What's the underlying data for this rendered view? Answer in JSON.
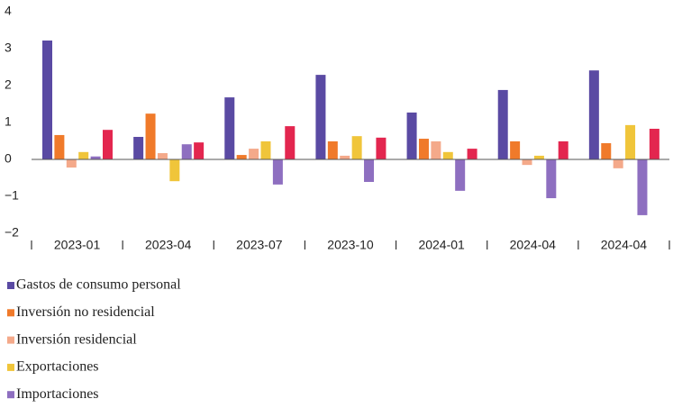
{
  "chart_data": {
    "type": "bar",
    "categories": [
      "2023-01",
      "2023-04",
      "2023-07",
      "2023-10",
      "2024-01",
      "2024-04",
      "2024-04"
    ],
    "series": [
      {
        "name": "Gastos de consumo personal",
        "color": "#5a4aa3",
        "values": [
          3.22,
          0.61,
          1.68,
          2.29,
          1.27,
          1.88,
          2.41
        ]
      },
      {
        "name": "Inversión no residencial",
        "color": "#f07a2a",
        "values": [
          0.66,
          1.24,
          0.12,
          0.49,
          0.56,
          0.49,
          0.44
        ]
      },
      {
        "name": "Inversión residencial",
        "color": "#f4a98a",
        "values": [
          -0.22,
          0.17,
          0.29,
          0.1,
          0.49,
          -0.15,
          -0.24
        ]
      },
      {
        "name": "Exportaciones",
        "color": "#f0c53a",
        "values": [
          0.2,
          -0.59,
          0.49,
          0.63,
          0.2,
          0.1,
          0.93
        ]
      },
      {
        "name": "Importaciones",
        "color": "#8e6fc0",
        "values": [
          0.08,
          0.41,
          -0.68,
          -0.61,
          -0.85,
          -1.05,
          -1.51
        ]
      },
      {
        "color": "#e3264f",
        "values": [
          0.8,
          0.46,
          0.9,
          0.59,
          0.29,
          0.49,
          0.83
        ]
      }
    ],
    "ylim": [
      -2,
      4
    ],
    "yticks": [
      {
        "value": -2,
        "label": "−2"
      },
      {
        "value": -1,
        "label": "−1"
      },
      0,
      1,
      2,
      3,
      4
    ]
  }
}
